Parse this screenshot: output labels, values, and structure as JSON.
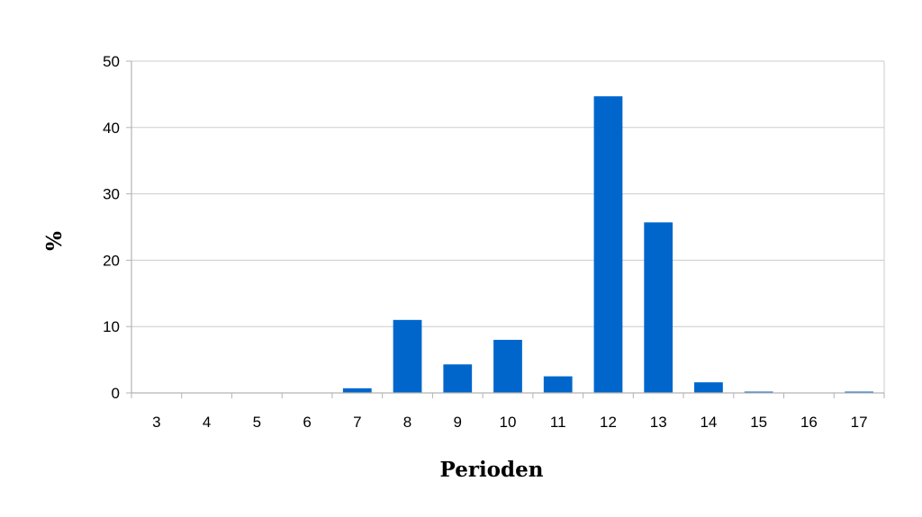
{
  "chart_data": {
    "type": "bar",
    "xlabel": "Perioden",
    "ylabel": "%",
    "categories": [
      "3",
      "4",
      "5",
      "6",
      "7",
      "8",
      "9",
      "10",
      "11",
      "12",
      "13",
      "14",
      "15",
      "16",
      "17"
    ],
    "series": [
      {
        "values": [
          0,
          0,
          0,
          0,
          0.7,
          11.0,
          4.3,
          8.0,
          2.5,
          44.7,
          25.7,
          1.6,
          0.2,
          0,
          0.2
        ]
      }
    ],
    "ylim": [
      0,
      50
    ],
    "yticks": [
      0,
      10,
      20,
      30,
      40,
      50
    ],
    "grid": true,
    "legend": "none",
    "colors": {
      "bar": "#0066cc",
      "grid": "#cccccc",
      "axis": "#b3b3b3"
    }
  }
}
